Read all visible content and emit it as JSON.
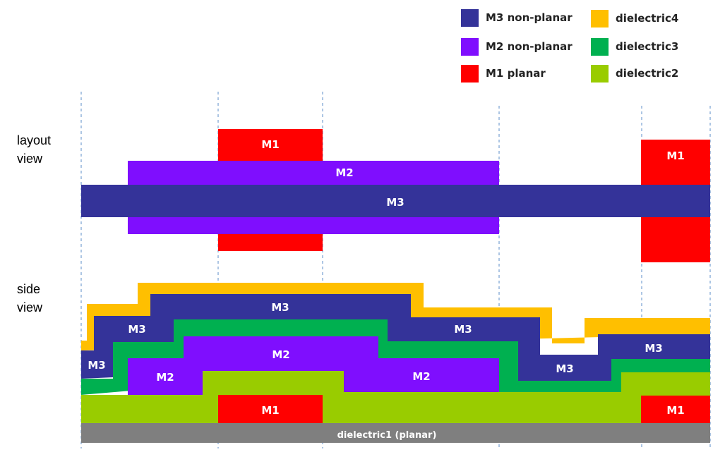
{
  "colors": {
    "m3": "#343399",
    "m2": "#7f0efe",
    "m1": "#ff0000",
    "dielectric4": "#ffbf00",
    "dielectric3": "#00b050",
    "dielectric2": "#99cc00",
    "dielectric1": "#7f7f7f",
    "guide": "#5b8dc9"
  },
  "legend": [
    {
      "label": "M3 non-planar",
      "color": "#343399"
    },
    {
      "label": "M2 non-planar",
      "color": "#7f0efe"
    },
    {
      "label": "M1 planar",
      "color": "#ff0000"
    },
    {
      "label": "dielectric4",
      "color": "#ffbf00"
    },
    {
      "label": "dielectric3",
      "color": "#00b050"
    },
    {
      "label": "dielectric2",
      "color": "#99cc00"
    }
  ],
  "views": {
    "layout_label": "layout\nview",
    "side_label": "side\nview"
  },
  "shape_labels": {
    "m1": "M1",
    "m2": "M2",
    "m3": "M3",
    "dielectric1": "dielectric1 (planar)"
  }
}
